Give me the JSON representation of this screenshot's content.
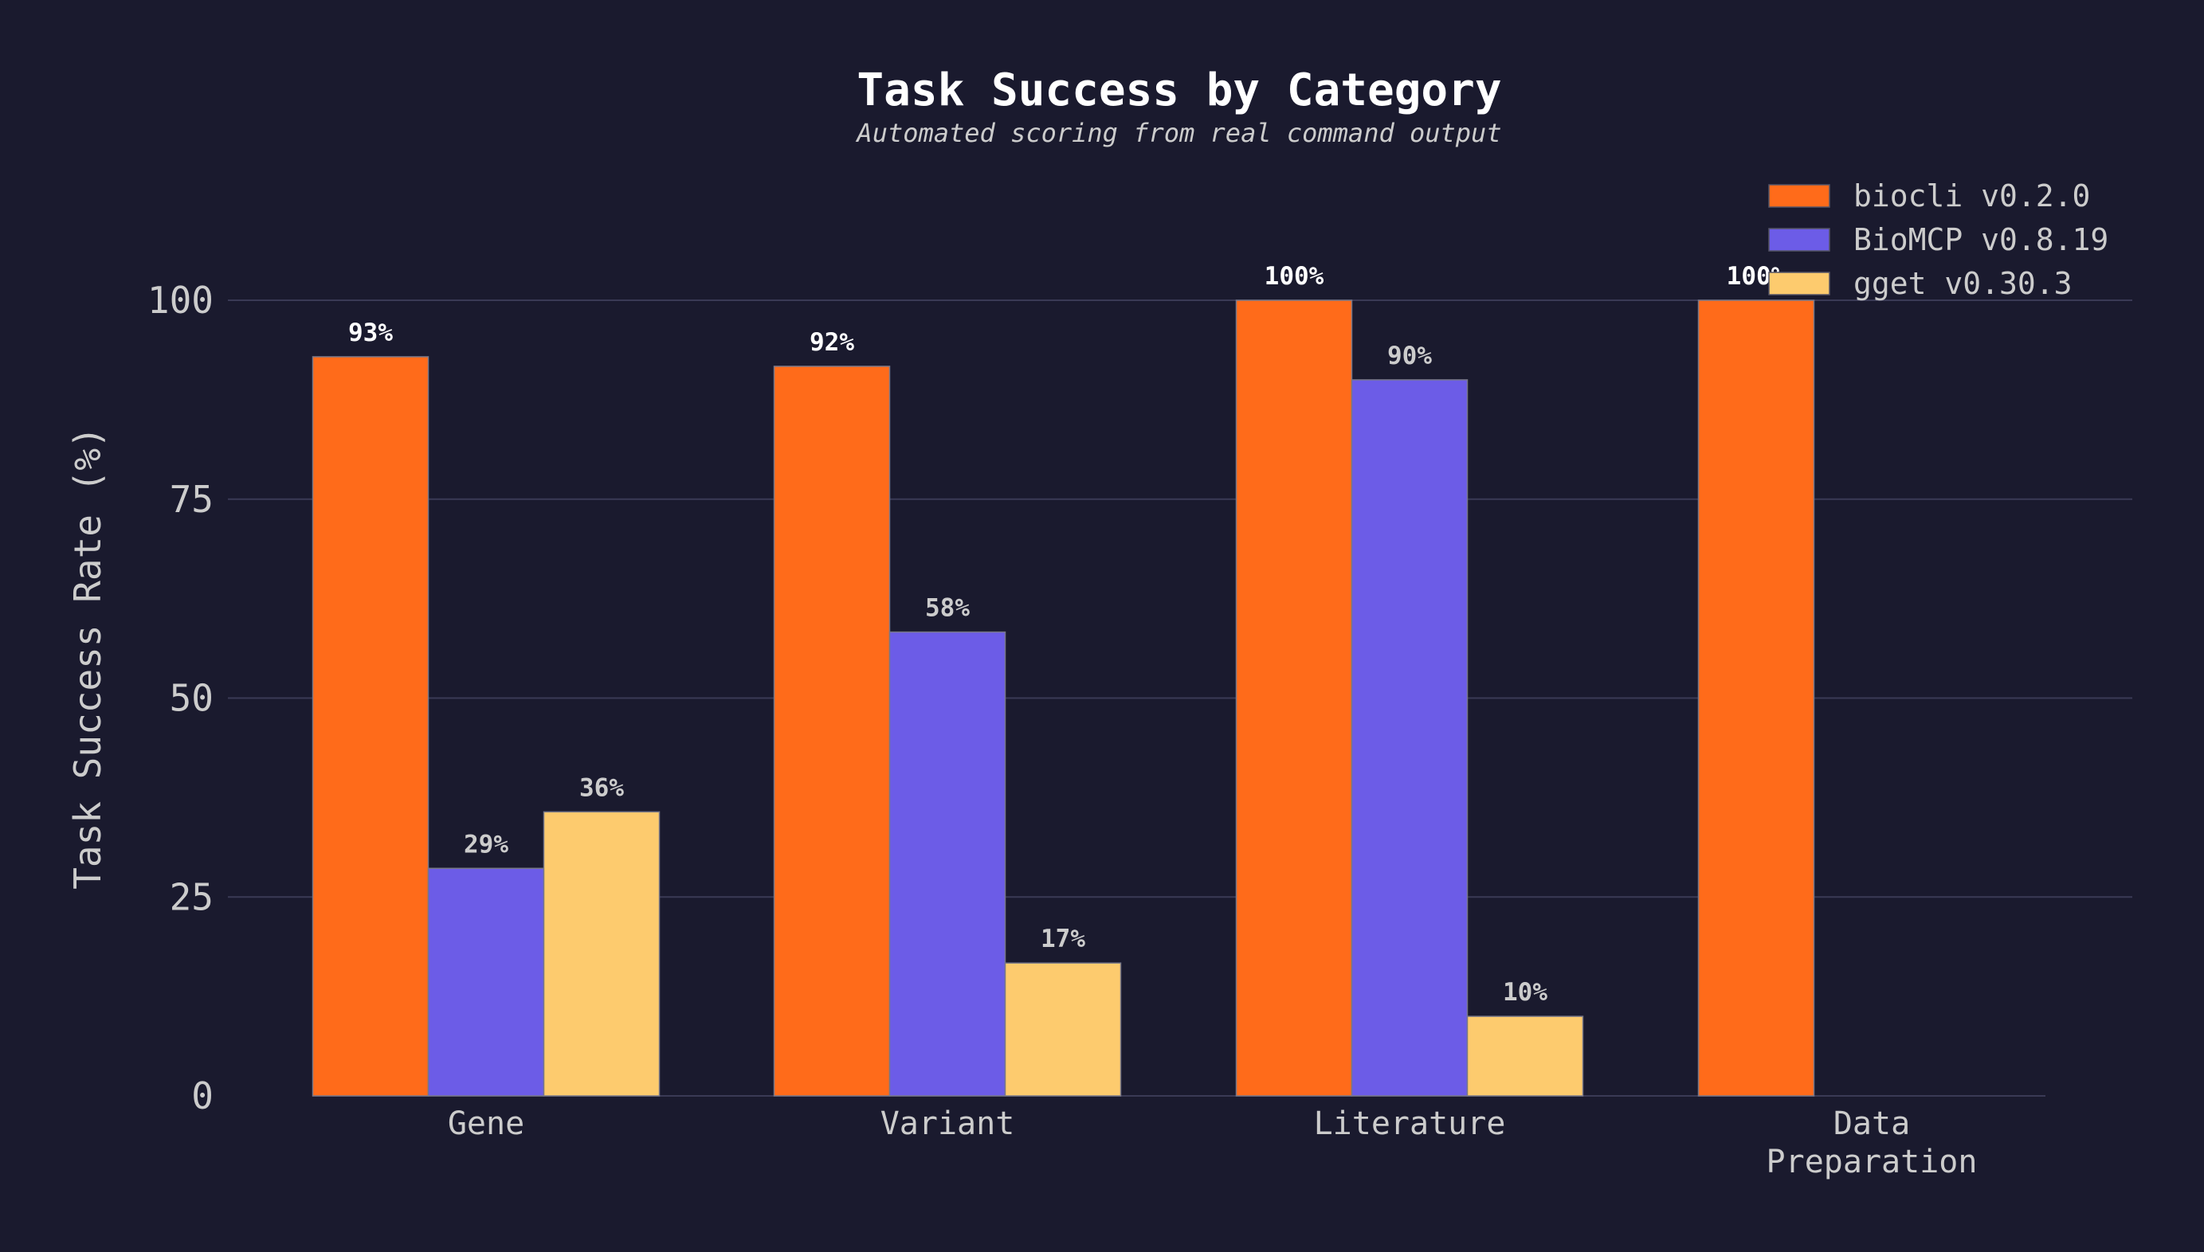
{
  "colors": {
    "background": "#1a1a2e",
    "grid": "#3a3a55",
    "text": "#cccccc",
    "title": "#ffffff"
  },
  "chart_data": {
    "type": "bar",
    "title": "Task Success by Category",
    "subtitle": "Automated scoring from real command output",
    "xlabel": "",
    "ylabel": "Task Success Rate (%)",
    "ylim": [
      0,
      100
    ],
    "yticks": [
      0,
      25,
      50,
      75,
      100
    ],
    "grid": true,
    "legend_position": "top-right",
    "categories": [
      [
        "Gene"
      ],
      [
        "Variant"
      ],
      [
        "Literature"
      ],
      [
        "Data",
        "Preparation"
      ]
    ],
    "series": [
      {
        "name": "biocli v0.2.0",
        "color": "#ff6b1a",
        "values": [
          92.9,
          91.7,
          100,
          100
        ],
        "labels": [
          "93%",
          "92%",
          "100%",
          "100%"
        ],
        "label_color": "#ffffff"
      },
      {
        "name": "BioMCP v0.8.19",
        "color": "#6c5ce7",
        "values": [
          28.6,
          58.3,
          90,
          null
        ],
        "labels": [
          "29%",
          "58%",
          "90%",
          ""
        ],
        "label_color": "#cccccc"
      },
      {
        "name": "gget v0.30.3",
        "color": "#fdcb6e",
        "values": [
          35.7,
          16.7,
          10,
          null
        ],
        "labels": [
          "36%",
          "17%",
          "10%",
          ""
        ],
        "label_color": "#cccccc"
      }
    ]
  }
}
